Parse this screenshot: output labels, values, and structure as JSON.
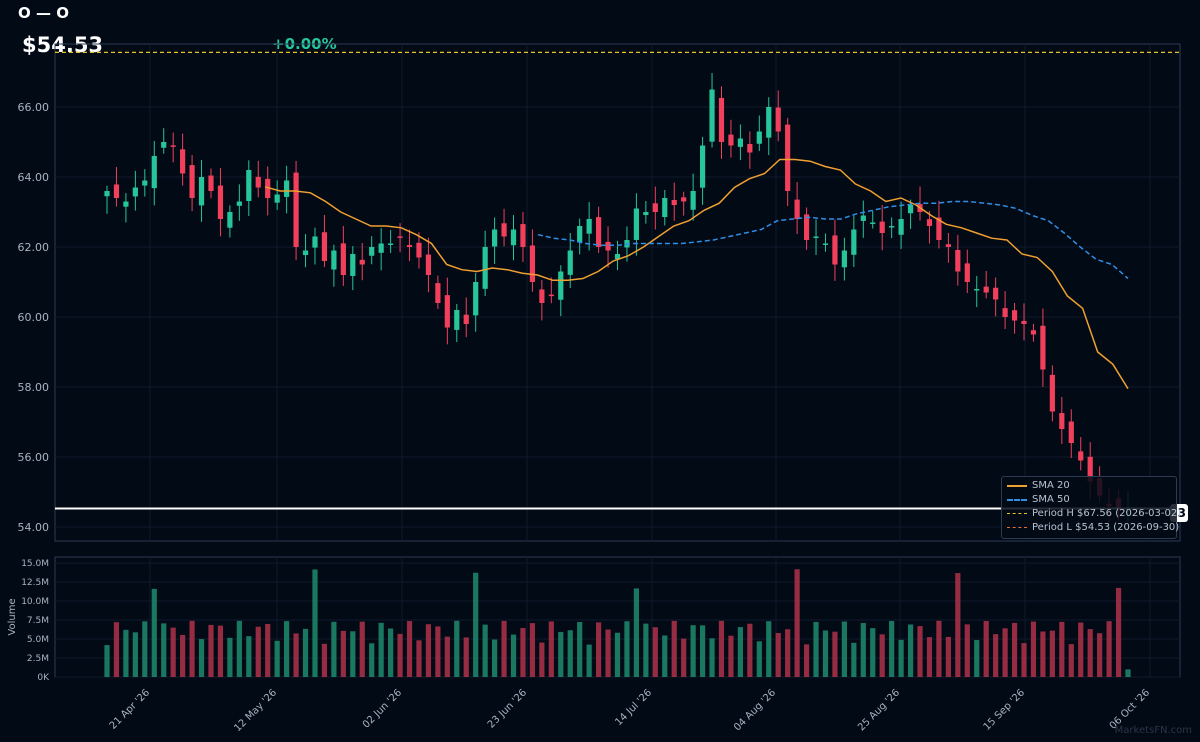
{
  "header": {
    "ticker": "O — O",
    "price": "$54.53",
    "change": "+0.00%"
  },
  "watermark": "MarketsFN.com",
  "price_tag": "3",
  "colors": {
    "background": "#020a16",
    "up": "#26c59a",
    "down": "#f23f5c",
    "sma20": "#f0a030",
    "sma50": "#2f8ee6",
    "period_high": "#e6c229",
    "period_low": "#e0733a",
    "last_price_line": "#ffffff"
  },
  "legend": {
    "sma20": "SMA 20",
    "sma50": "SMA 50",
    "period_high": "Period H $67.56 (2026-03-02)",
    "period_low": "Period L $54.53 (2026-09-30)"
  },
  "chart_data": [
    {
      "type": "candlestick",
      "ylim": [
        53.6,
        67.8
      ],
      "yticks": [
        "54.00",
        "56.00",
        "58.00",
        "60.00",
        "62.00",
        "64.00",
        "66.00"
      ],
      "xticks": [
        "21 Apr '26",
        "12 May '26",
        "02 Jun '26",
        "23 Jun '26",
        "14 Jul '26",
        "04 Aug '26",
        "25 Aug '26",
        "15 Sep '26",
        "06 Oct '26"
      ],
      "reference_lines": {
        "period_high": 67.56,
        "period_low": 54.53,
        "last_price": 54.53
      },
      "grid": true,
      "legend_position": "bottom-right",
      "candles_close": [
        63.6,
        63.4,
        63.3,
        63.7,
        63.9,
        64.6,
        65.0,
        64.9,
        64.1,
        63.4,
        64.0,
        63.6,
        62.8,
        63.0,
        63.3,
        64.2,
        63.7,
        63.4,
        63.5,
        63.9,
        62.0,
        61.9,
        62.3,
        61.6,
        61.9,
        61.2,
        61.8,
        61.5,
        62.0,
        62.1,
        62.1,
        62.3,
        62.0,
        61.7,
        61.2,
        60.4,
        59.7,
        60.2,
        59.8,
        61.0,
        62.0,
        62.5,
        62.3,
        62.5,
        62.0,
        61.0,
        60.4,
        60.6,
        61.3,
        61.9,
        62.6,
        62.8,
        62.0,
        61.9,
        61.8,
        62.2,
        63.1,
        63.0,
        63.0,
        63.4,
        63.2,
        63.3,
        63.6,
        64.9,
        66.5,
        65.0,
        64.9,
        65.1,
        64.7,
        65.3,
        66.0,
        65.3,
        63.6,
        62.8,
        62.2,
        62.3,
        62.1,
        61.5,
        61.9,
        62.5,
        62.9,
        62.7,
        62.4,
        62.6,
        62.8,
        63.2,
        63.0,
        62.6,
        62.2,
        62.0,
        61.3,
        61.0,
        60.8,
        60.7,
        60.5,
        60.0,
        59.9,
        59.8,
        59.5,
        58.5,
        57.3,
        56.8,
        56.4,
        55.9,
        55.3,
        54.9,
        54.6,
        54.55,
        54.53
      ],
      "sma20": [
        63.72,
        63.6,
        63.6,
        63.55,
        63.3,
        63.0,
        62.8,
        62.6,
        62.6,
        62.55,
        62.35,
        62.1,
        61.5,
        61.35,
        61.3,
        61.4,
        61.35,
        61.25,
        61.2,
        61.05,
        61.05,
        61.1,
        61.3,
        61.6,
        61.75,
        62.0,
        62.3,
        62.6,
        62.75,
        63.05,
        63.25,
        63.7,
        63.95,
        64.1,
        64.5,
        64.5,
        64.45,
        64.3,
        64.2,
        63.8,
        63.6,
        63.3,
        63.4,
        63.2,
        62.9,
        62.65,
        62.55,
        62.4,
        62.25,
        62.2,
        61.8,
        61.7,
        61.3,
        60.6,
        60.25,
        59.0,
        58.65,
        57.95
      ],
      "sma50": [
        62.35,
        62.25,
        62.2,
        62.1,
        62.05,
        62.05,
        62.1,
        62.1,
        62.1,
        62.1,
        62.15,
        62.2,
        62.3,
        62.4,
        62.5,
        62.75,
        62.8,
        62.85,
        62.8,
        62.8,
        62.95,
        63.05,
        63.15,
        63.2,
        63.25,
        63.25,
        63.3,
        63.3,
        63.25,
        63.2,
        63.1,
        62.9,
        62.75,
        62.4,
        62.0,
        61.65,
        61.5,
        61.1
      ],
      "volume_yticks": [
        "0K",
        "2.5M",
        "5.0M",
        "7.5M",
        "10.0M",
        "12.5M",
        "15.0M"
      ],
      "volume_ylabel": "Volume",
      "volume_ylim": [
        0,
        15.8
      ]
    }
  ]
}
